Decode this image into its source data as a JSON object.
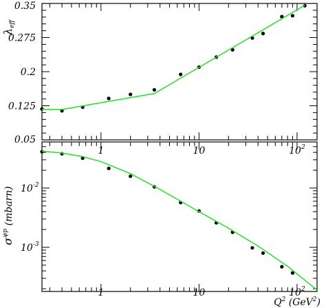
{
  "chart_data": [
    {
      "type": "line",
      "ylabel": "λeff",
      "ylabel_main": "λ",
      "ylabel_sub": "eff",
      "xscale": "log",
      "xlim": [
        0.25,
        160
      ],
      "ylim": [
        0.05,
        0.35
      ],
      "grid": false,
      "y_ticks": [
        "0.05",
        "0.125",
        "0.2",
        "0.275",
        "0.35"
      ],
      "y_tick_values": [
        0.05,
        0.125,
        0.2,
        0.275,
        0.35
      ],
      "series": [
        {
          "kind": "points",
          "color": "#000000",
          "x": [
            0.25,
            0.4,
            0.65,
            1.2,
            2.0,
            3.5,
            6.5,
            10,
            15,
            22,
            35,
            45,
            70,
            90,
            120
          ],
          "y": [
            0.118,
            0.114,
            0.122,
            0.141,
            0.15,
            0.16,
            0.194,
            0.21,
            0.232,
            0.248,
            0.274,
            0.284,
            0.321,
            0.323,
            0.345
          ]
        },
        {
          "kind": "fit",
          "color": "#33dd33",
          "x": [
            0.25,
            0.4,
            3.5,
            120
          ],
          "y": [
            0.117,
            0.117,
            0.152,
            0.346
          ]
        }
      ]
    },
    {
      "type": "line",
      "ylabel": "σψp (mbarn)",
      "ylabel_main": "σ",
      "ylabel_sup": "ψp",
      "ylabel_unit": " (mbarn)",
      "xlabel": "Q² (GeV²)",
      "xlabel_main": "Q",
      "xlabel_sup": "2",
      "xlabel_unit": " (GeV",
      "xlabel_unit_sup": "2",
      "xlabel_close": ")",
      "xscale": "log",
      "yscale": "log",
      "xlim": [
        0.25,
        160
      ],
      "ylim": [
        0.00018,
        0.06
      ],
      "grid": false,
      "x_ticks": [
        "1",
        "10",
        "10",
        "2"
      ],
      "x_tick_labels": [
        {
          "base": "1",
          "exp": ""
        },
        {
          "base": "10",
          "exp": ""
        },
        {
          "base": "10",
          "exp": "2"
        }
      ],
      "y_tick_labels": [
        {
          "base": "10",
          "exp": "-2"
        },
        {
          "base": "10",
          "exp": "-3"
        }
      ],
      "series": [
        {
          "kind": "points",
          "color": "#000000",
          "x": [
            0.25,
            0.4,
            0.65,
            1.2,
            2.0,
            3.5,
            6.5,
            10,
            15,
            22,
            35,
            45,
            70,
            90
          ],
          "y": [
            0.041,
            0.038,
            0.032,
            0.0215,
            0.0158,
            0.0105,
            0.0057,
            0.0041,
            0.0026,
            0.0018,
            0.00098,
            0.0008,
            0.00047,
            0.00037
          ]
        },
        {
          "kind": "fit",
          "color": "#33dd33",
          "x": [
            0.25,
            0.4,
            0.65,
            1.0,
            2.0,
            4.0,
            10,
            20,
            40,
            80,
            160
          ],
          "y": [
            0.042,
            0.039,
            0.034,
            0.028,
            0.0175,
            0.0095,
            0.004,
            0.0021,
            0.00105,
            0.00048,
            0.00019
          ]
        }
      ]
    }
  ]
}
